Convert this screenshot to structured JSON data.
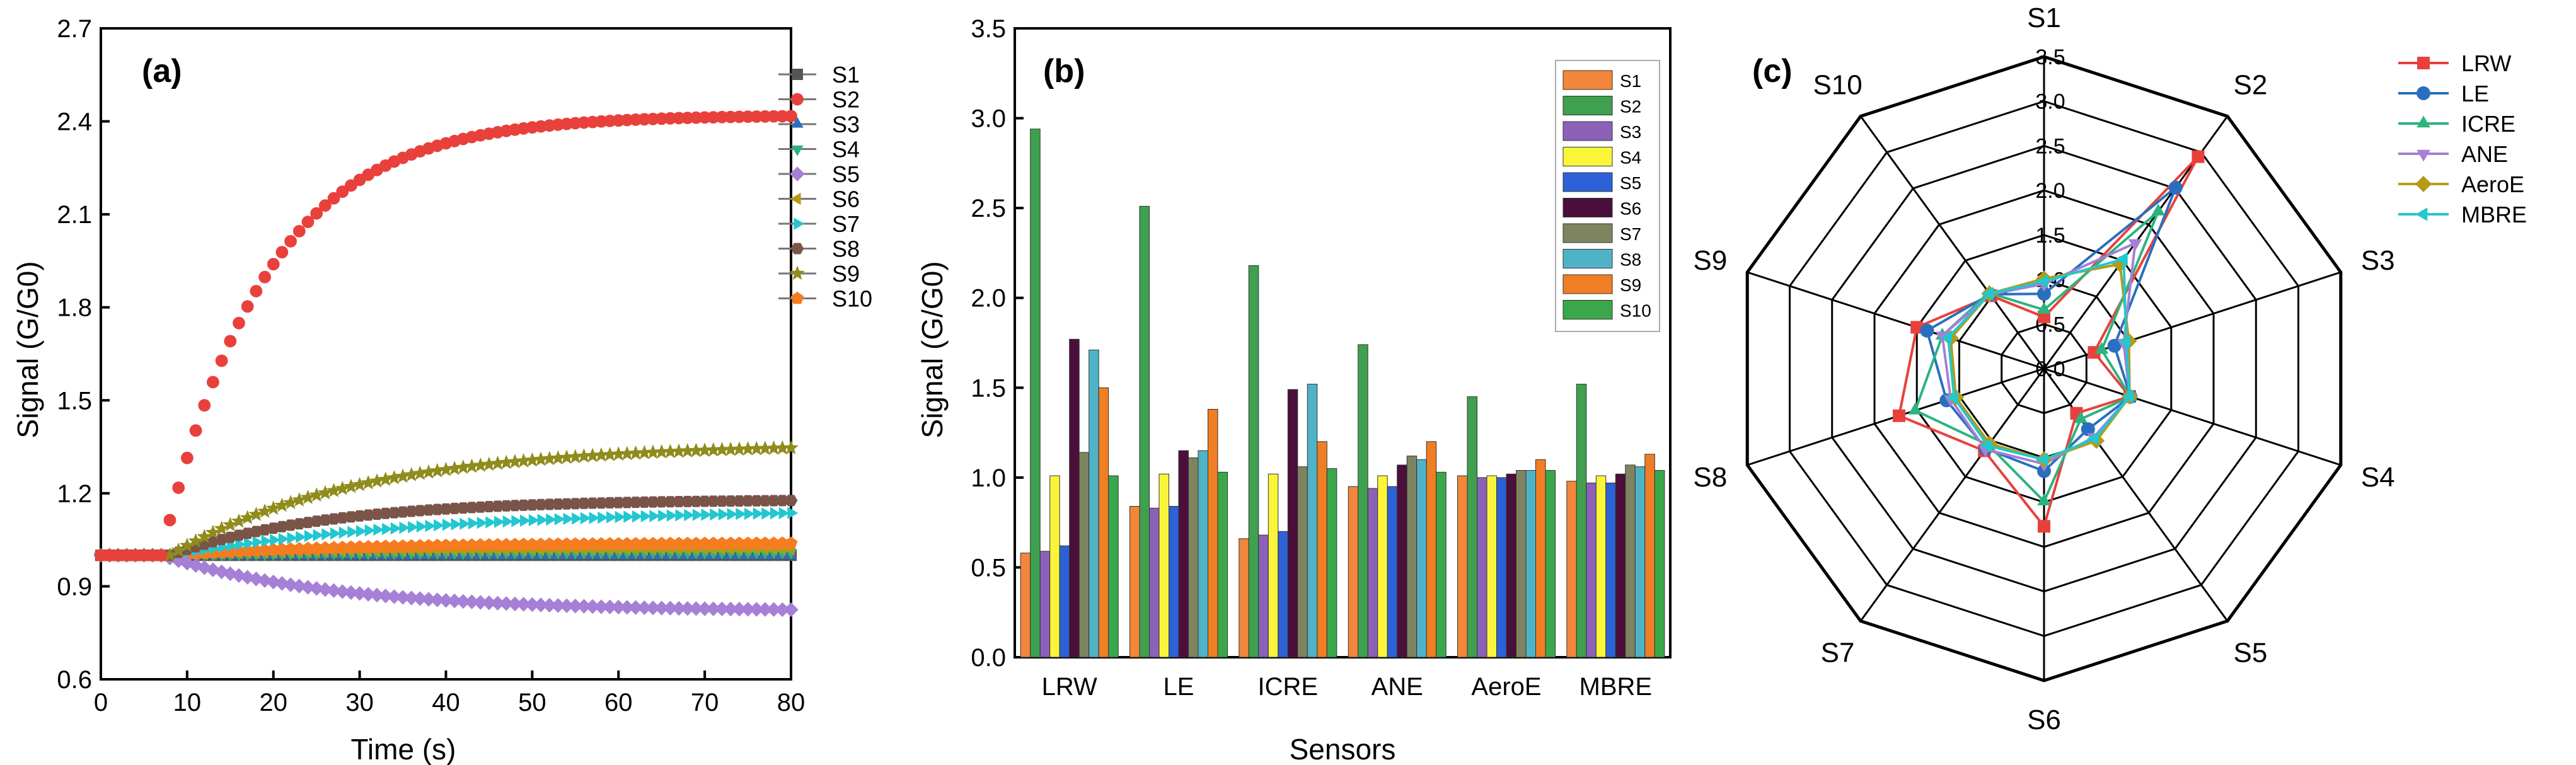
{
  "chart_data": [
    {
      "type": "scatter",
      "panel": "(a)",
      "xlabel": "Time (s)",
      "ylabel": "Signal (G/G0)",
      "xlim": [
        0,
        80
      ],
      "ylim": [
        0.6,
        2.7
      ],
      "xticks": [
        0,
        10,
        20,
        30,
        40,
        50,
        60,
        70,
        80
      ],
      "yticks": [
        0.6,
        0.9,
        1.2,
        1.5,
        1.8,
        2.1,
        2.4,
        2.7
      ],
      "legend_position": "right",
      "series": [
        {
          "name": "S1",
          "color": "#555555",
          "marker": "square",
          "start": 1.0,
          "end": 1.0,
          "onset": 8,
          "tau": 20
        },
        {
          "name": "S2",
          "color": "#e8413c",
          "marker": "circle",
          "start": 1.0,
          "end": 2.42,
          "onset": 7,
          "tau": 12
        },
        {
          "name": "S3",
          "color": "#2a6fbf",
          "marker": "triangle-up",
          "start": 1.0,
          "end": 1.0,
          "onset": 8,
          "tau": 20
        },
        {
          "name": "S4",
          "color": "#2db37f",
          "marker": "triangle-down",
          "start": 1.0,
          "end": 1.01,
          "onset": 8,
          "tau": 20
        },
        {
          "name": "S5",
          "color": "#a67fd6",
          "marker": "diamond",
          "start": 1.0,
          "end": 0.82,
          "onset": 7,
          "tau": 20
        },
        {
          "name": "S6",
          "color": "#b59a16",
          "marker": "triangle-left",
          "start": 1.0,
          "end": 1.02,
          "onset": 8,
          "tau": 20
        },
        {
          "name": "S7",
          "color": "#22c7cf",
          "marker": "triangle-right",
          "start": 1.0,
          "end": 1.15,
          "onset": 8,
          "tau": 30
        },
        {
          "name": "S8",
          "color": "#7a5448",
          "marker": "hexagon",
          "start": 1.0,
          "end": 1.18,
          "onset": 8,
          "tau": 18
        },
        {
          "name": "S9",
          "color": "#8f8c1c",
          "marker": "star",
          "start": 1.0,
          "end": 1.36,
          "onset": 8,
          "tau": 22
        },
        {
          "name": "S10",
          "color": "#f57c1f",
          "marker": "pentagon",
          "start": 1.0,
          "end": 1.04,
          "onset": 8,
          "tau": 20
        }
      ]
    },
    {
      "type": "bar",
      "panel": "(b)",
      "xlabel": "Sensors",
      "ylabel": "Signal (G/G0)",
      "ylim": [
        0.0,
        3.5
      ],
      "yticks": [
        0.0,
        0.5,
        1.0,
        1.5,
        2.0,
        2.5,
        3.0,
        3.5
      ],
      "categories": [
        "LRW",
        "LE",
        "ICRE",
        "ANE",
        "AeroE",
        "MBRE"
      ],
      "legend_position": "top-right",
      "series": [
        {
          "name": "S1",
          "color": "#f2863a",
          "values": [
            0.58,
            0.84,
            0.66,
            0.95,
            1.01,
            0.98
          ]
        },
        {
          "name": "S2",
          "color": "#3fa04f",
          "values": [
            2.94,
            2.51,
            2.18,
            1.74,
            1.45,
            1.52
          ]
        },
        {
          "name": "S3",
          "color": "#8b62b8",
          "values": [
            0.59,
            0.83,
            0.68,
            0.94,
            1.0,
            0.97
          ]
        },
        {
          "name": "S4",
          "color": "#fbf53a",
          "values": [
            1.01,
            1.02,
            1.02,
            1.01,
            1.01,
            1.01
          ]
        },
        {
          "name": "S5",
          "color": "#2c61d8",
          "values": [
            0.62,
            0.84,
            0.7,
            0.95,
            1.0,
            0.97
          ]
        },
        {
          "name": "S6",
          "color": "#4a0f3a",
          "values": [
            1.77,
            1.15,
            1.49,
            1.07,
            1.02,
            1.02
          ]
        },
        {
          "name": "S7",
          "color": "#7f8460",
          "values": [
            1.14,
            1.11,
            1.06,
            1.12,
            1.04,
            1.07
          ]
        },
        {
          "name": "S8",
          "color": "#4fb3c8",
          "values": [
            1.71,
            1.15,
            1.52,
            1.1,
            1.04,
            1.06
          ]
        },
        {
          "name": "S9",
          "color": "#f07e24",
          "values": [
            1.5,
            1.38,
            1.2,
            1.2,
            1.1,
            1.13
          ]
        },
        {
          "name": "S10",
          "color": "#3aa84a",
          "values": [
            1.01,
            1.03,
            1.05,
            1.03,
            1.04,
            1.04
          ]
        }
      ]
    },
    {
      "type": "radar",
      "panel": "(c)",
      "axes": [
        "S1",
        "S2",
        "S3",
        "S4",
        "S5",
        "S6",
        "S7",
        "S8",
        "S9",
        "S10"
      ],
      "rlim": [
        0.0,
        3.5
      ],
      "rticks": [
        0.0,
        0.5,
        1.0,
        1.5,
        2.0,
        2.5,
        3.0,
        3.5
      ],
      "legend_position": "top-right",
      "series": [
        {
          "name": "LRW",
          "color": "#e8413c",
          "marker": "square",
          "values": [
            0.58,
            2.94,
            0.59,
            1.01,
            0.62,
            1.77,
            1.14,
            1.71,
            1.5,
            1.01
          ]
        },
        {
          "name": "LE",
          "color": "#2a6fbf",
          "marker": "circle",
          "values": [
            0.84,
            2.51,
            0.83,
            1.02,
            0.84,
            1.15,
            1.11,
            1.15,
            1.38,
            1.03
          ]
        },
        {
          "name": "ICRE",
          "color": "#2db37f",
          "marker": "triangle-up",
          "values": [
            0.66,
            2.18,
            0.68,
            1.02,
            0.7,
            1.49,
            1.06,
            1.52,
            1.2,
            1.05
          ]
        },
        {
          "name": "ANE",
          "color": "#a67fd6",
          "marker": "triangle-down",
          "values": [
            0.95,
            1.74,
            0.94,
            1.01,
            0.95,
            1.07,
            1.12,
            1.1,
            1.2,
            1.03
          ]
        },
        {
          "name": "AeroE",
          "color": "#b59a16",
          "marker": "diamond",
          "values": [
            1.01,
            1.45,
            1.0,
            1.01,
            1.0,
            1.02,
            1.04,
            1.04,
            1.1,
            1.04
          ]
        },
        {
          "name": "MBRE",
          "color": "#22c7cf",
          "marker": "triangle-left",
          "values": [
            0.98,
            1.52,
            0.97,
            1.01,
            0.97,
            1.02,
            1.07,
            1.06,
            1.13,
            1.04
          ]
        }
      ]
    }
  ]
}
